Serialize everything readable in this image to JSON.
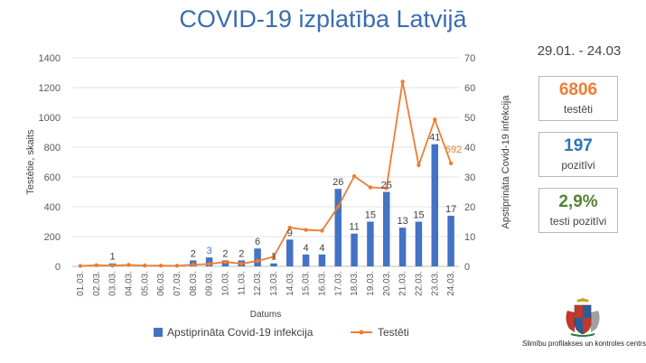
{
  "page": {
    "title": "COVID-19 izplatība Latvijā",
    "date_range": "29.01. - 24.03"
  },
  "stats": [
    {
      "value": "6806",
      "label": "testēti",
      "color": "#ed7d31"
    },
    {
      "value": "197",
      "label": "pozitīvi",
      "color": "#2e75b6"
    },
    {
      "value": "2,9%",
      "label": "testi pozitīvi",
      "color": "#548235"
    }
  ],
  "footer": {
    "org": "Slimību profilakses un kontroles centrs"
  },
  "chart_data": {
    "type": "bar",
    "categories": [
      "01.03.",
      "02.03.",
      "03.03.",
      "04.03.",
      "05.03.",
      "06.03.",
      "07.03.",
      "08.03.",
      "09.03.",
      "10.03.",
      "11.03.",
      "12.03.",
      "13.03.",
      "14.03.",
      "15.03.",
      "16.03.",
      "17.03.",
      "18.03.",
      "19.03.",
      "20.03.",
      "21.03.",
      "22.03.",
      "23.03.",
      "24.03."
    ],
    "xlabel": "Datums",
    "ylabel": "Testētie, skaits",
    "y2label": "Apstiprināta Covid-19 infekcija",
    "ylim": [
      0,
      1400
    ],
    "y2lim": [
      0,
      70
    ],
    "yticks": [
      "0",
      "200",
      "400",
      "600",
      "800",
      "1000",
      "1200",
      "1400"
    ],
    "y2ticks": [
      "0",
      "10",
      "20",
      "30",
      "40",
      "50",
      "60",
      "70"
    ],
    "legend_position": "bottom",
    "series": [
      {
        "name": "Apstiprināta Covid-19 infekcija",
        "type": "bar",
        "axis": "right",
        "color": "#4472c4",
        "values": [
          0,
          0,
          1,
          0,
          0,
          0,
          0,
          2,
          3,
          2,
          2,
          6,
          1,
          9,
          4,
          4,
          26,
          11,
          15,
          25,
          13,
          15,
          41,
          17
        ],
        "labels": [
          "",
          "",
          "1",
          "",
          "",
          "",
          "",
          "2",
          "3",
          "2",
          "2",
          "6",
          "1",
          "9",
          "4",
          "4",
          "26",
          "11",
          "15",
          "25",
          "13",
          "15",
          "41",
          "17"
        ]
      },
      {
        "name": "Testēti",
        "type": "line",
        "axis": "left",
        "color": "#ed7d31",
        "values": [
          3,
          8,
          6,
          10,
          6,
          5,
          4,
          12,
          16,
          30,
          18,
          36,
          65,
          260,
          245,
          240,
          400,
          605,
          530,
          525,
          1240,
          680,
          985,
          692
        ],
        "labels": [
          "",
          "",
          "",
          "",
          "",
          "",
          "",
          "",
          "",
          "",
          "",
          "",
          "",
          "",
          "",
          "",
          "",
          "",
          "",
          "",
          "",
          "",
          "",
          "692"
        ]
      }
    ]
  }
}
